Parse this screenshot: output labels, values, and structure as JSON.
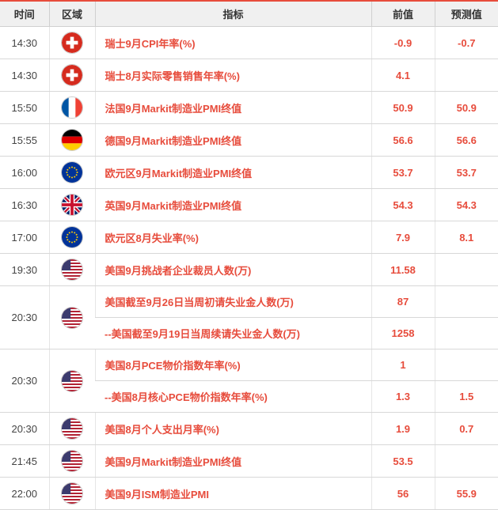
{
  "colors": {
    "accent": "#e74c3c",
    "header_bg": "#f0f0f0",
    "border": "#d8d8d8",
    "text_default": "#333",
    "time_text": "#444"
  },
  "header": {
    "time": "时间",
    "region": "区域",
    "indicator": "指标",
    "prev": "前值",
    "forecast": "预测值"
  },
  "flags": {
    "CH": {
      "type": "swiss"
    },
    "FR": {
      "type": "france"
    },
    "DE": {
      "type": "germany"
    },
    "EU": {
      "type": "eu"
    },
    "UK": {
      "type": "uk"
    },
    "US": {
      "type": "us"
    }
  },
  "rows": [
    {
      "time": "14:30",
      "region": "CH",
      "indicator": "瑞士9月CPI年率(%)",
      "prev": "-0.9",
      "forecast": "-0.7",
      "rowspan_time": 1,
      "rowspan_region": 1
    },
    {
      "time": "14:30",
      "region": "CH",
      "indicator": "瑞士8月实际零售销售年率(%)",
      "prev": "4.1",
      "forecast": "",
      "rowspan_time": 1,
      "rowspan_region": 1
    },
    {
      "time": "15:50",
      "region": "FR",
      "indicator": "法国9月Markit制造业PMI终值",
      "prev": "50.9",
      "forecast": "50.9",
      "rowspan_time": 1,
      "rowspan_region": 1
    },
    {
      "time": "15:55",
      "region": "DE",
      "indicator": "德国9月Markit制造业PMI终值",
      "prev": "56.6",
      "forecast": "56.6",
      "rowspan_time": 1,
      "rowspan_region": 1
    },
    {
      "time": "16:00",
      "region": "EU",
      "indicator": "欧元区9月Markit制造业PMI终值",
      "prev": "53.7",
      "forecast": "53.7",
      "rowspan_time": 1,
      "rowspan_region": 1
    },
    {
      "time": "16:30",
      "region": "UK",
      "indicator": "英国9月Markit制造业PMI终值",
      "prev": "54.3",
      "forecast": "54.3",
      "rowspan_time": 1,
      "rowspan_region": 1
    },
    {
      "time": "17:00",
      "region": "EU",
      "indicator": "欧元区8月失业率(%)",
      "prev": "7.9",
      "forecast": "8.1",
      "rowspan_time": 1,
      "rowspan_region": 1
    },
    {
      "time": "19:30",
      "region": "US",
      "indicator": "美国9月挑战者企业裁员人数(万)",
      "prev": "11.58",
      "forecast": "",
      "rowspan_time": 1,
      "rowspan_region": 1
    },
    {
      "time": "20:30",
      "region": "US",
      "indicator": "美国截至9月26日当周初请失业金人数(万)",
      "prev": "87",
      "forecast": "",
      "rowspan_time": 2,
      "rowspan_region": 2
    },
    {
      "time": null,
      "region": null,
      "indicator": "--美国截至9月19日当周续请失业金人数(万)",
      "prev": "1258",
      "forecast": ""
    },
    {
      "time": "20:30",
      "region": "US",
      "indicator": "美国8月PCE物价指数年率(%)",
      "prev": "1",
      "forecast": "",
      "rowspan_time": 2,
      "rowspan_region": 2
    },
    {
      "time": null,
      "region": null,
      "indicator": "--美国8月核心PCE物价指数年率(%)",
      "prev": "1.3",
      "forecast": "1.5"
    },
    {
      "time": "20:30",
      "region": "US",
      "indicator": "美国8月个人支出月率(%)",
      "prev": "1.9",
      "forecast": "0.7",
      "rowspan_time": 1,
      "rowspan_region": 1
    },
    {
      "time": "21:45",
      "region": "US",
      "indicator": "美国9月Markit制造业PMI终值",
      "prev": "53.5",
      "forecast": "",
      "rowspan_time": 1,
      "rowspan_region": 1
    },
    {
      "time": "22:00",
      "region": "US",
      "indicator": "美国9月ISM制造业PMI",
      "prev": "56",
      "forecast": "55.9",
      "rowspan_time": 1,
      "rowspan_region": 1
    }
  ]
}
